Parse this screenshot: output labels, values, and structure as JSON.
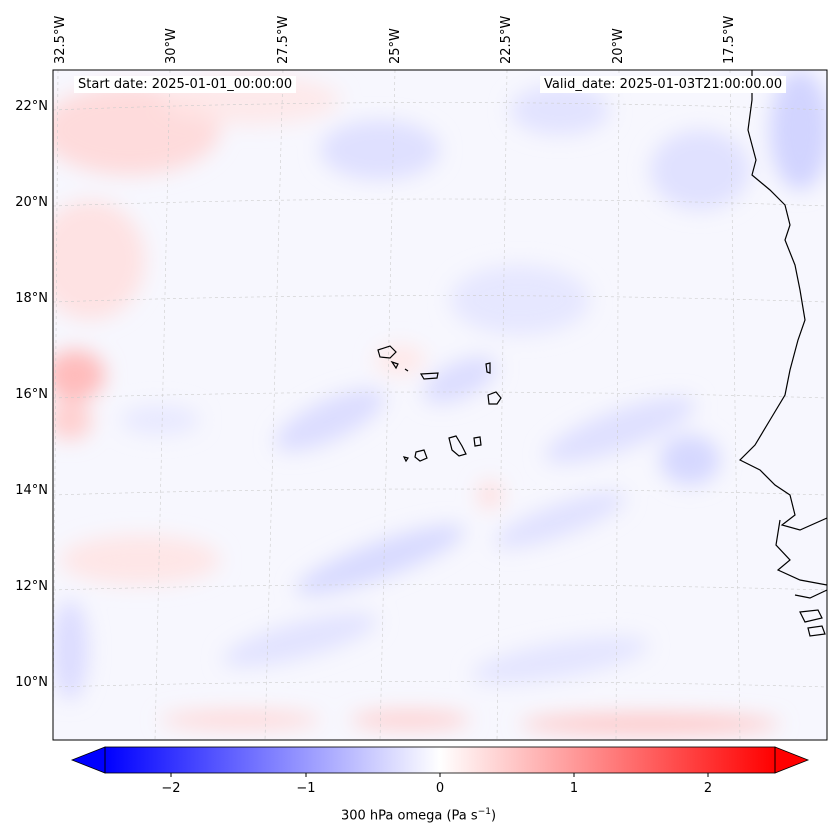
{
  "map": {
    "start_date": "Start date: 2025-01-01_00:00:00",
    "valid_date": "Valid_date: 2025-01-03T21:00:00.00",
    "lon_labels": [
      "32.5°W",
      "30°W",
      "27.5°W",
      "25°W",
      "22.5°W",
      "20°W",
      "17.5°W"
    ],
    "lat_labels": [
      "22°N",
      "20°N",
      "18°N",
      "16°N",
      "14°N",
      "12°N",
      "10°N"
    ],
    "variable": "300 hPa omega",
    "units": "Pa s",
    "units_exponent": "−1",
    "region": "Cape Verde and West African coast"
  },
  "colorbar": {
    "ticks": [
      "−2",
      "−1",
      "0",
      "1",
      "2"
    ],
    "range": [
      -2.6,
      2.6
    ],
    "colormap": "bwr",
    "extend": "both",
    "low_color": "#0000ff",
    "mid_color": "#ffffff",
    "high_color": "#ff0000"
  }
}
